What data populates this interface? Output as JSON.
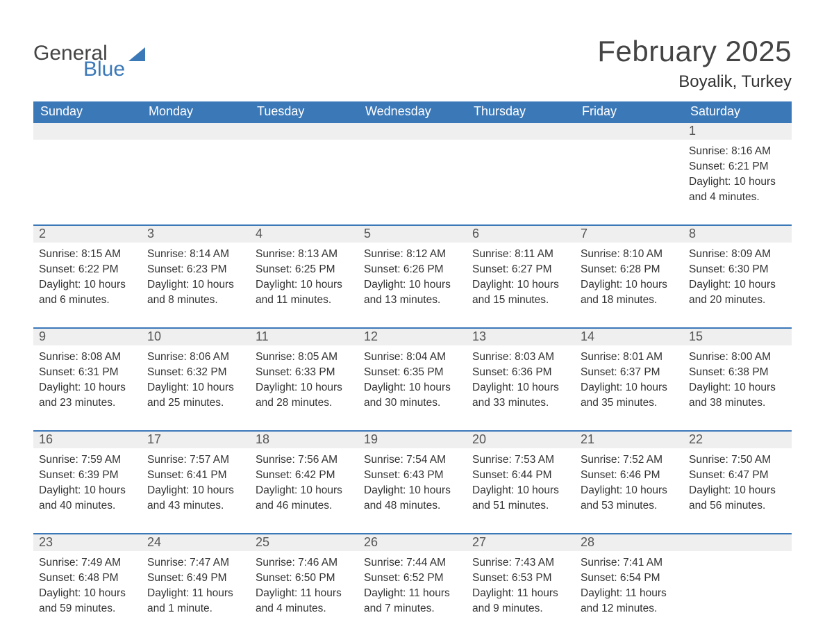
{
  "brand": {
    "word1": "General",
    "word2": "Blue"
  },
  "title": "February 2025",
  "location": "Boyalik, Turkey",
  "colors": {
    "header_bg": "#3b78b8",
    "header_text": "#ffffff",
    "daynum_bg": "#efefef",
    "rule": "#3b78b8",
    "body_text": "#333333",
    "title_text": "#444444"
  },
  "dow": [
    "Sunday",
    "Monday",
    "Tuesday",
    "Wednesday",
    "Thursday",
    "Friday",
    "Saturday"
  ],
  "weeks": [
    [
      null,
      null,
      null,
      null,
      null,
      null,
      {
        "n": "1",
        "sunrise": "8:16 AM",
        "sunset": "6:21 PM",
        "daylight": "10 hours and 4 minutes."
      }
    ],
    [
      {
        "n": "2",
        "sunrise": "8:15 AM",
        "sunset": "6:22 PM",
        "daylight": "10 hours and 6 minutes."
      },
      {
        "n": "3",
        "sunrise": "8:14 AM",
        "sunset": "6:23 PM",
        "daylight": "10 hours and 8 minutes."
      },
      {
        "n": "4",
        "sunrise": "8:13 AM",
        "sunset": "6:25 PM",
        "daylight": "10 hours and 11 minutes."
      },
      {
        "n": "5",
        "sunrise": "8:12 AM",
        "sunset": "6:26 PM",
        "daylight": "10 hours and 13 minutes."
      },
      {
        "n": "6",
        "sunrise": "8:11 AM",
        "sunset": "6:27 PM",
        "daylight": "10 hours and 15 minutes."
      },
      {
        "n": "7",
        "sunrise": "8:10 AM",
        "sunset": "6:28 PM",
        "daylight": "10 hours and 18 minutes."
      },
      {
        "n": "8",
        "sunrise": "8:09 AM",
        "sunset": "6:30 PM",
        "daylight": "10 hours and 20 minutes."
      }
    ],
    [
      {
        "n": "9",
        "sunrise": "8:08 AM",
        "sunset": "6:31 PM",
        "daylight": "10 hours and 23 minutes."
      },
      {
        "n": "10",
        "sunrise": "8:06 AM",
        "sunset": "6:32 PM",
        "daylight": "10 hours and 25 minutes."
      },
      {
        "n": "11",
        "sunrise": "8:05 AM",
        "sunset": "6:33 PM",
        "daylight": "10 hours and 28 minutes."
      },
      {
        "n": "12",
        "sunrise": "8:04 AM",
        "sunset": "6:35 PM",
        "daylight": "10 hours and 30 minutes."
      },
      {
        "n": "13",
        "sunrise": "8:03 AM",
        "sunset": "6:36 PM",
        "daylight": "10 hours and 33 minutes."
      },
      {
        "n": "14",
        "sunrise": "8:01 AM",
        "sunset": "6:37 PM",
        "daylight": "10 hours and 35 minutes."
      },
      {
        "n": "15",
        "sunrise": "8:00 AM",
        "sunset": "6:38 PM",
        "daylight": "10 hours and 38 minutes."
      }
    ],
    [
      {
        "n": "16",
        "sunrise": "7:59 AM",
        "sunset": "6:39 PM",
        "daylight": "10 hours and 40 minutes."
      },
      {
        "n": "17",
        "sunrise": "7:57 AM",
        "sunset": "6:41 PM",
        "daylight": "10 hours and 43 minutes."
      },
      {
        "n": "18",
        "sunrise": "7:56 AM",
        "sunset": "6:42 PM",
        "daylight": "10 hours and 46 minutes."
      },
      {
        "n": "19",
        "sunrise": "7:54 AM",
        "sunset": "6:43 PM",
        "daylight": "10 hours and 48 minutes."
      },
      {
        "n": "20",
        "sunrise": "7:53 AM",
        "sunset": "6:44 PM",
        "daylight": "10 hours and 51 minutes."
      },
      {
        "n": "21",
        "sunrise": "7:52 AM",
        "sunset": "6:46 PM",
        "daylight": "10 hours and 53 minutes."
      },
      {
        "n": "22",
        "sunrise": "7:50 AM",
        "sunset": "6:47 PM",
        "daylight": "10 hours and 56 minutes."
      }
    ],
    [
      {
        "n": "23",
        "sunrise": "7:49 AM",
        "sunset": "6:48 PM",
        "daylight": "10 hours and 59 minutes."
      },
      {
        "n": "24",
        "sunrise": "7:47 AM",
        "sunset": "6:49 PM",
        "daylight": "11 hours and 1 minute."
      },
      {
        "n": "25",
        "sunrise": "7:46 AM",
        "sunset": "6:50 PM",
        "daylight": "11 hours and 4 minutes."
      },
      {
        "n": "26",
        "sunrise": "7:44 AM",
        "sunset": "6:52 PM",
        "daylight": "11 hours and 7 minutes."
      },
      {
        "n": "27",
        "sunrise": "7:43 AM",
        "sunset": "6:53 PM",
        "daylight": "11 hours and 9 minutes."
      },
      {
        "n": "28",
        "sunrise": "7:41 AM",
        "sunset": "6:54 PM",
        "daylight": "11 hours and 12 minutes."
      },
      null
    ]
  ],
  "labels": {
    "sunrise": "Sunrise: ",
    "sunset": "Sunset: ",
    "daylight": "Daylight: "
  }
}
